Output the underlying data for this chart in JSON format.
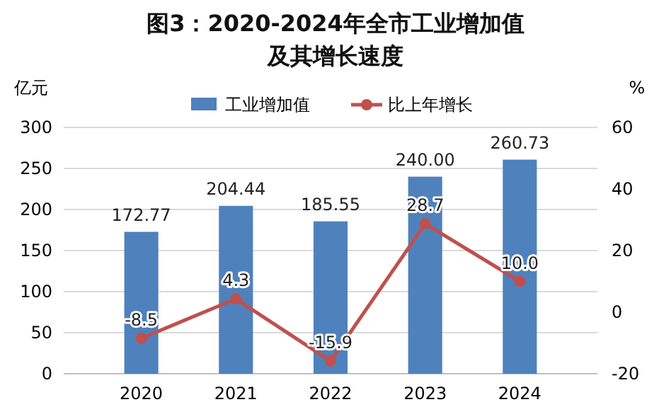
{
  "chart_data": {
    "type": "bar",
    "title": "图3：2020-2024年全市工业增加值及其增长速度",
    "ylabel": "亿元",
    "y2label": "%",
    "categories": [
      "2020",
      "2021",
      "2022",
      "2023",
      "2024"
    ],
    "series": [
      {
        "name": "工业增加值",
        "color": "#4f81bd",
        "values": [
          172.77,
          204.44,
          185.55,
          240.0,
          260.73
        ],
        "value_labels": [
          "172.77",
          "204.44",
          "185.55",
          "240.00",
          "260.73"
        ]
      },
      {
        "name": "比上年增长",
        "type": "line",
        "axis": "y2",
        "color": "#c0504d",
        "values": [
          -8.5,
          4.3,
          -15.9,
          28.7,
          10.0
        ],
        "value_labels": [
          "-8.5",
          "4.3",
          "-15.9",
          "28.7",
          "10.0"
        ]
      }
    ],
    "ylim": [
      0,
      300
    ],
    "yticks": [
      0,
      50,
      100,
      150,
      200,
      250,
      300
    ],
    "y2lim": [
      -20,
      60
    ],
    "y2ticks": [
      -20,
      0,
      20,
      40,
      60
    ],
    "grid": "y",
    "legend": "top",
    "marker": "circle",
    "line_style": "solid"
  }
}
